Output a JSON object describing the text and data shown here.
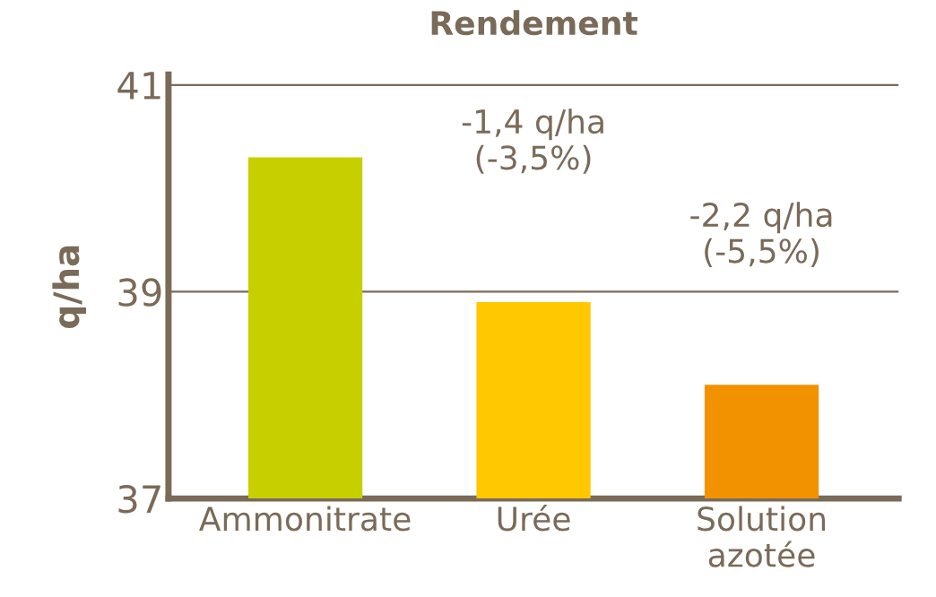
{
  "chart_data": {
    "type": "bar",
    "title": "Rendement",
    "ylabel": "q/ha",
    "categories": [
      "Ammonitrate",
      "Urée",
      "Solution\nazotée"
    ],
    "values": [
      40.3,
      38.9,
      38.1
    ],
    "colors": [
      "#c8cf00",
      "#ffc800",
      "#f39200"
    ],
    "ylim": [
      37,
      41.1
    ],
    "yticks": [
      37,
      39,
      41
    ],
    "grid": "y",
    "annotations": [
      "-1,4 q/ha\n(-3,5%)",
      "-2,2 q/ha\n(-5,5%)"
    ]
  }
}
